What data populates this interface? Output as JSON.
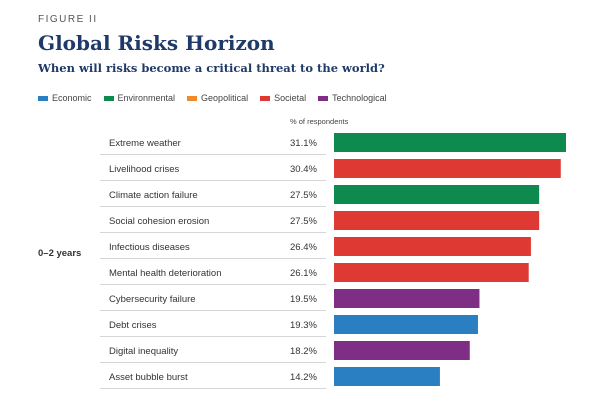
{
  "figure_label": "FIGURE II",
  "title": "Global Risks Horizon",
  "subtitle": "When will risks become a critical threat to the world?",
  "legend": [
    {
      "label": "Economic",
      "color": "#2a7fc3"
    },
    {
      "label": "Environmental",
      "color": "#0e8a4e"
    },
    {
      "label": "Geopolitical",
      "color": "#ef8b2c"
    },
    {
      "label": "Societal",
      "color": "#de3a33"
    },
    {
      "label": "Technological",
      "color": "#7f2e86"
    }
  ],
  "column_header": "% of respondents",
  "group_label": "0–2 years",
  "chart_data": {
    "type": "bar",
    "orientation": "horizontal",
    "xlim": [
      0,
      31.1
    ],
    "categories": [
      "Extreme weather",
      "Livelihood crises",
      "Climate action failure",
      "Social cohesion erosion",
      "Infectious diseases",
      "Mental health deterioration",
      "Cybersecurity failure",
      "Debt crises",
      "Digital inequality",
      "Asset bubble burst"
    ],
    "values": [
      31.1,
      30.4,
      27.5,
      27.5,
      26.4,
      26.1,
      19.5,
      19.3,
      18.2,
      14.2
    ],
    "value_labels": [
      "31.1%",
      "30.4%",
      "27.5%",
      "27.5%",
      "26.4%",
      "26.1%",
      "19.5%",
      "19.3%",
      "18.2%",
      "14.2%"
    ],
    "groups": [
      "Environmental",
      "Societal",
      "Environmental",
      "Societal",
      "Societal",
      "Societal",
      "Technological",
      "Economic",
      "Technological",
      "Economic"
    ],
    "colors": [
      "#0e8a4e",
      "#de3a33",
      "#0e8a4e",
      "#de3a33",
      "#de3a33",
      "#de3a33",
      "#7f2e86",
      "#2a7fc3",
      "#7f2e86",
      "#2a7fc3"
    ]
  }
}
